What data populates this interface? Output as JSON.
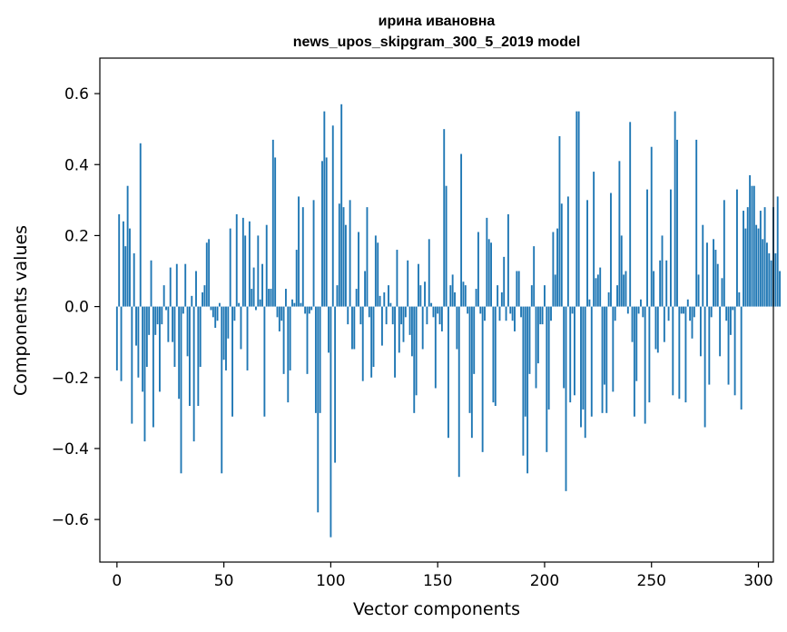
{
  "chart_data": {
    "type": "bar",
    "title_lines": [
      "ирина ивановна",
      "news_upos_skipgram_300_5_2019 model"
    ],
    "xlabel": "Vector components",
    "ylabel": "Components values",
    "xlim": [
      -8,
      307
    ],
    "ylim": [
      -0.72,
      0.7
    ],
    "xticks": [
      0,
      50,
      100,
      150,
      200,
      250,
      300
    ],
    "yticks": [
      -0.6,
      -0.4,
      -0.2,
      0.0,
      0.2,
      0.4,
      0.6
    ],
    "ytick_labels": [
      "−0.6",
      "−0.4",
      "−0.2",
      "0.0",
      "0.2",
      "0.4",
      "0.6"
    ],
    "grid": false,
    "series": [
      {
        "color": "#1f77b4",
        "values": [
          -0.18,
          0.26,
          -0.21,
          0.24,
          0.17,
          0.34,
          0.22,
          -0.33,
          0.15,
          -0.11,
          -0.2,
          0.46,
          -0.24,
          -0.38,
          -0.17,
          -0.08,
          0.13,
          -0.34,
          -0.08,
          -0.05,
          -0.24,
          -0.05,
          0.06,
          -0.01,
          -0.1,
          0.11,
          -0.1,
          -0.17,
          0.12,
          -0.26,
          -0.47,
          -0.02,
          0.12,
          -0.14,
          -0.28,
          0.03,
          -0.38,
          0.1,
          -0.28,
          -0.17,
          0.04,
          0.06,
          0.18,
          0.19,
          -0.01,
          -0.03,
          -0.06,
          -0.04,
          0.01,
          -0.47,
          -0.15,
          -0.18,
          -0.09,
          0.22,
          -0.31,
          -0.04,
          0.26,
          0.01,
          -0.12,
          0.25,
          0.2,
          -0.18,
          0.24,
          0.05,
          0.11,
          -0.01,
          0.2,
          0.02,
          0.12,
          -0.31,
          0.23,
          0.05,
          0.05,
          0.47,
          0.42,
          -0.03,
          -0.07,
          -0.04,
          -0.19,
          0.05,
          -0.27,
          -0.18,
          0.02,
          0.01,
          0.16,
          0.31,
          0.01,
          0.28,
          -0.02,
          -0.19,
          -0.02,
          -0.01,
          0.3,
          -0.3,
          -0.58,
          -0.3,
          0.41,
          0.55,
          0.42,
          -0.13,
          -0.65,
          0.51,
          -0.44,
          0.06,
          0.29,
          0.57,
          0.28,
          0.23,
          -0.05,
          0.3,
          -0.12,
          -0.12,
          0.05,
          0.21,
          -0.05,
          -0.21,
          0.1,
          0.28,
          -0.03,
          -0.2,
          -0.17,
          0.2,
          0.18,
          0.03,
          -0.11,
          0.04,
          -0.05,
          0.06,
          0.01,
          -0.05,
          -0.2,
          0.16,
          -0.13,
          -0.05,
          -0.1,
          -0.03,
          0.13,
          -0.08,
          -0.14,
          -0.3,
          -0.25,
          0.12,
          0.06,
          -0.12,
          0.07,
          -0.05,
          0.19,
          0.01,
          -0.03,
          -0.23,
          -0.02,
          -0.05,
          -0.07,
          0.5,
          0.34,
          -0.37,
          0.06,
          0.09,
          0.04,
          -0.12,
          -0.48,
          0.43,
          0.07,
          0.06,
          -0.02,
          -0.3,
          -0.37,
          -0.19,
          0.05,
          0.21,
          -0.02,
          -0.41,
          -0.04,
          0.25,
          0.19,
          0.18,
          -0.27,
          -0.28,
          0.06,
          -0.04,
          0.04,
          0.14,
          -0.04,
          0.26,
          -0.02,
          -0.04,
          -0.07,
          0.1,
          0.1,
          -0.03,
          -0.42,
          -0.31,
          -0.47,
          -0.19,
          0.06,
          0.17,
          -0.23,
          -0.16,
          -0.05,
          -0.05,
          0.06,
          -0.41,
          -0.29,
          -0.04,
          0.21,
          0.09,
          0.22,
          0.48,
          0.29,
          -0.23,
          -0.52,
          0.31,
          -0.27,
          -0.02,
          -0.25,
          0.55,
          0.55,
          -0.34,
          -0.29,
          -0.37,
          0.3,
          0.02,
          -0.31,
          0.38,
          0.08,
          0.09,
          0.11,
          -0.3,
          -0.22,
          -0.3,
          0.04,
          0.32,
          -0.24,
          -0.04,
          0.06,
          0.41,
          0.2,
          0.09,
          0.1,
          -0.02,
          0.52,
          -0.1,
          -0.31,
          -0.21,
          -0.02,
          0.02,
          -0.03,
          -0.33,
          0.33,
          -0.27,
          0.45,
          0.1,
          -0.12,
          -0.13,
          0.13,
          0.2,
          -0.1,
          0.13,
          -0.04,
          0.33,
          -0.25,
          0.55,
          0.47,
          -0.26,
          -0.02,
          -0.02,
          -0.27,
          0.02,
          -0.04,
          -0.09,
          -0.03,
          0.47,
          0.09,
          -0.14,
          0.23,
          -0.34,
          0.18,
          -0.22,
          -0.03,
          0.19,
          0.16,
          0.12,
          -0.14,
          0.08,
          0.3,
          -0.04,
          -0.22,
          -0.08,
          -0.01,
          -0.25,
          0.33,
          0.04,
          -0.29,
          0.27,
          0.22,
          0.28,
          0.37,
          0.34,
          0.34,
          0.23,
          0.22,
          0.27,
          0.19,
          0.28,
          0.18,
          0.15,
          0.13,
          0.28,
          0.15,
          0.31,
          0.1
        ]
      }
    ]
  }
}
